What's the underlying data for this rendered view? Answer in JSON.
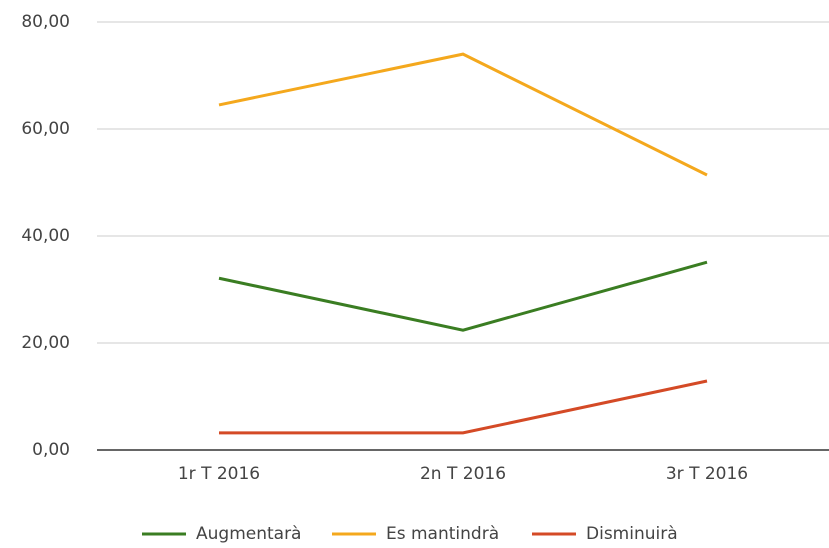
{
  "chart_data": {
    "type": "line",
    "categories": [
      "1r T 2016",
      "2n T 2016",
      "3r T 2016"
    ],
    "series": [
      {
        "name": "Augmentarà",
        "color": "#3a7d22",
        "values": [
          32.1,
          22.4,
          35.1
        ]
      },
      {
        "name": "Es mantindrà",
        "color": "#f4a81d",
        "values": [
          64.5,
          74.0,
          51.4
        ]
      },
      {
        "name": "Disminuirà",
        "color": "#d44a26",
        "values": [
          3.2,
          3.2,
          12.9
        ]
      }
    ],
    "ylim": [
      0,
      80
    ],
    "yticks": [
      {
        "value": 0,
        "label": "0,00"
      },
      {
        "value": 20,
        "label": "20,00"
      },
      {
        "value": 40,
        "label": "40,00"
      },
      {
        "value": 60,
        "label": "60,00"
      },
      {
        "value": 80,
        "label": "80,00"
      }
    ],
    "grid": true,
    "legend": "bottom"
  }
}
